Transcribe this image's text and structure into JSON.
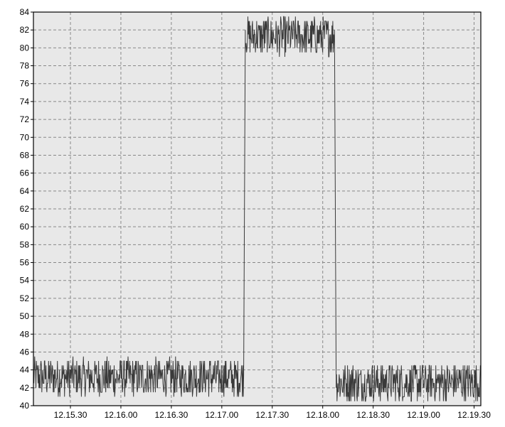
{
  "chart_data": {
    "type": "line",
    "title": "",
    "xlabel": "",
    "ylabel": "",
    "x_range": [
      "12:15:08",
      "12:19:34"
    ],
    "ylim": [
      40,
      84
    ],
    "y_ticks": [
      40,
      42,
      44,
      46,
      48,
      50,
      52,
      54,
      56,
      58,
      60,
      62,
      64,
      66,
      68,
      70,
      72,
      74,
      76,
      78,
      80,
      82,
      84
    ],
    "x_ticks": [
      {
        "time": "12:15:30",
        "label": "12.15.30"
      },
      {
        "time": "12:16:00",
        "label": "12.16.00"
      },
      {
        "time": "12:16:30",
        "label": "12.16.30"
      },
      {
        "time": "12:17:00",
        "label": "12.17.00"
      },
      {
        "time": "12:17:30",
        "label": "12.17.30"
      },
      {
        "time": "12:18:00",
        "label": "12.18.00"
      },
      {
        "time": "12:18:30",
        "label": "12.18.30"
      },
      {
        "time": "12:19:00",
        "label": "12.19.00"
      },
      {
        "time": "12:19:30",
        "label": "12.19.30"
      }
    ],
    "grid": true,
    "series": [
      {
        "color": "#3a3a3a",
        "segments": [
          {
            "start": "12:15:08",
            "end": "12:17:13",
            "mean": 43.2,
            "min": 41,
            "max": 46
          },
          {
            "start": "12:17:13",
            "end": "12:17:14",
            "from": 44,
            "to": 82
          },
          {
            "start": "12:17:14",
            "end": "12:18:07",
            "mean": 81.3,
            "min": 79,
            "max": 84
          },
          {
            "start": "12:18:07",
            "end": "12:18:08",
            "from": 82,
            "to": 43
          },
          {
            "start": "12:18:08",
            "end": "12:19:34",
            "mean": 42.6,
            "min": 40,
            "max": 45
          }
        ]
      }
    ]
  },
  "colors": {
    "plot_background": "#e8e8e8",
    "grid": "#888888",
    "axis": "#000000",
    "line": "#3a3a3a"
  }
}
